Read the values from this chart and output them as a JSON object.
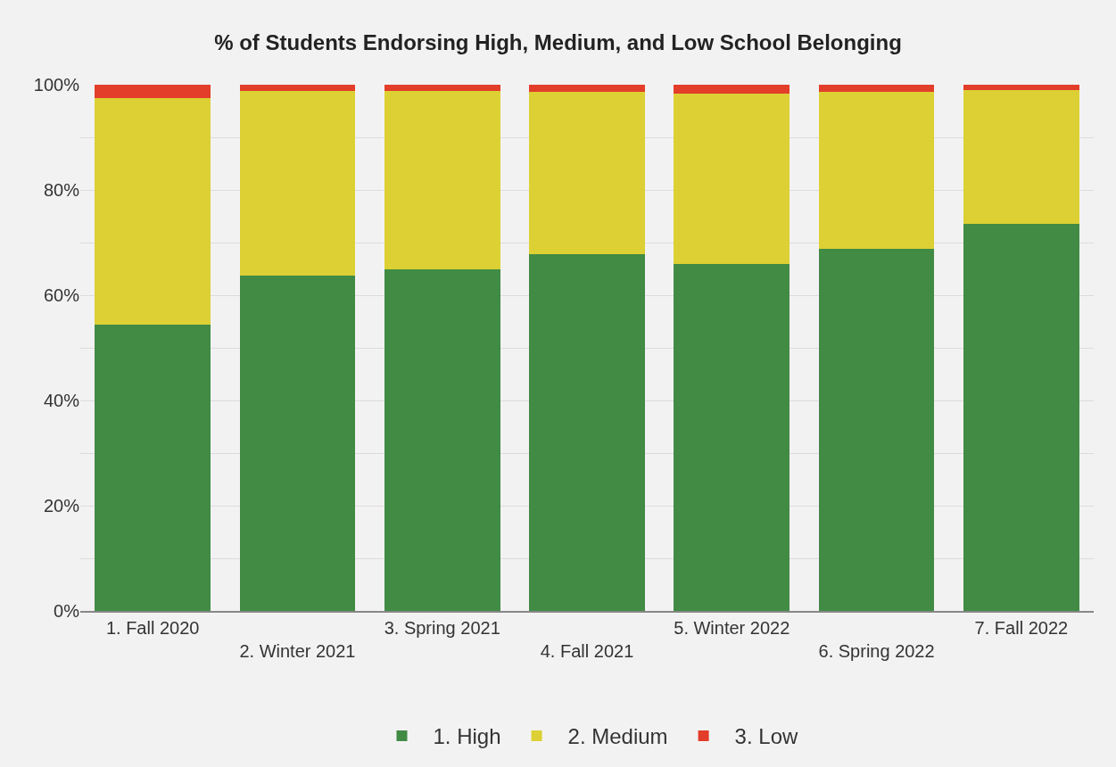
{
  "chart_data": {
    "type": "bar",
    "title": "% of Students Endorsing High, Medium, and Low School Belonging",
    "categories": [
      "1. Fall 2020",
      "2. Winter 2021",
      "3. Spring 2021",
      "4. Fall 2021",
      "5. Winter 2022",
      "6. Spring 2022",
      "7. Fall 2022"
    ],
    "series": [
      {
        "name": "1. High",
        "color": "#418b45",
        "values": [
          54.4,
          63.8,
          65.0,
          67.8,
          65.9,
          68.8,
          73.6
        ]
      },
      {
        "name": "2. Medium",
        "color": "#dcd034",
        "values": [
          43.0,
          35.0,
          33.8,
          30.8,
          32.4,
          29.8,
          25.4
        ]
      },
      {
        "name": "3. Low",
        "color": "#e23e2a",
        "values": [
          2.6,
          1.2,
          1.2,
          1.4,
          1.7,
          1.4,
          1.0
        ]
      }
    ],
    "stacked": true,
    "ylim": [
      0,
      100
    ],
    "yticks": [
      {
        "value": 0,
        "label": "0%"
      },
      {
        "value": 10,
        "label": null
      },
      {
        "value": 20,
        "label": "20%"
      },
      {
        "value": 30,
        "label": null
      },
      {
        "value": 40,
        "label": "40%"
      },
      {
        "value": 50,
        "label": null
      },
      {
        "value": 60,
        "label": "60%"
      },
      {
        "value": 70,
        "label": null
      },
      {
        "value": 80,
        "label": "80%"
      },
      {
        "value": 90,
        "label": null
      },
      {
        "value": 100,
        "label": "100%"
      }
    ],
    "grid": "y",
    "legend": "bottom"
  }
}
